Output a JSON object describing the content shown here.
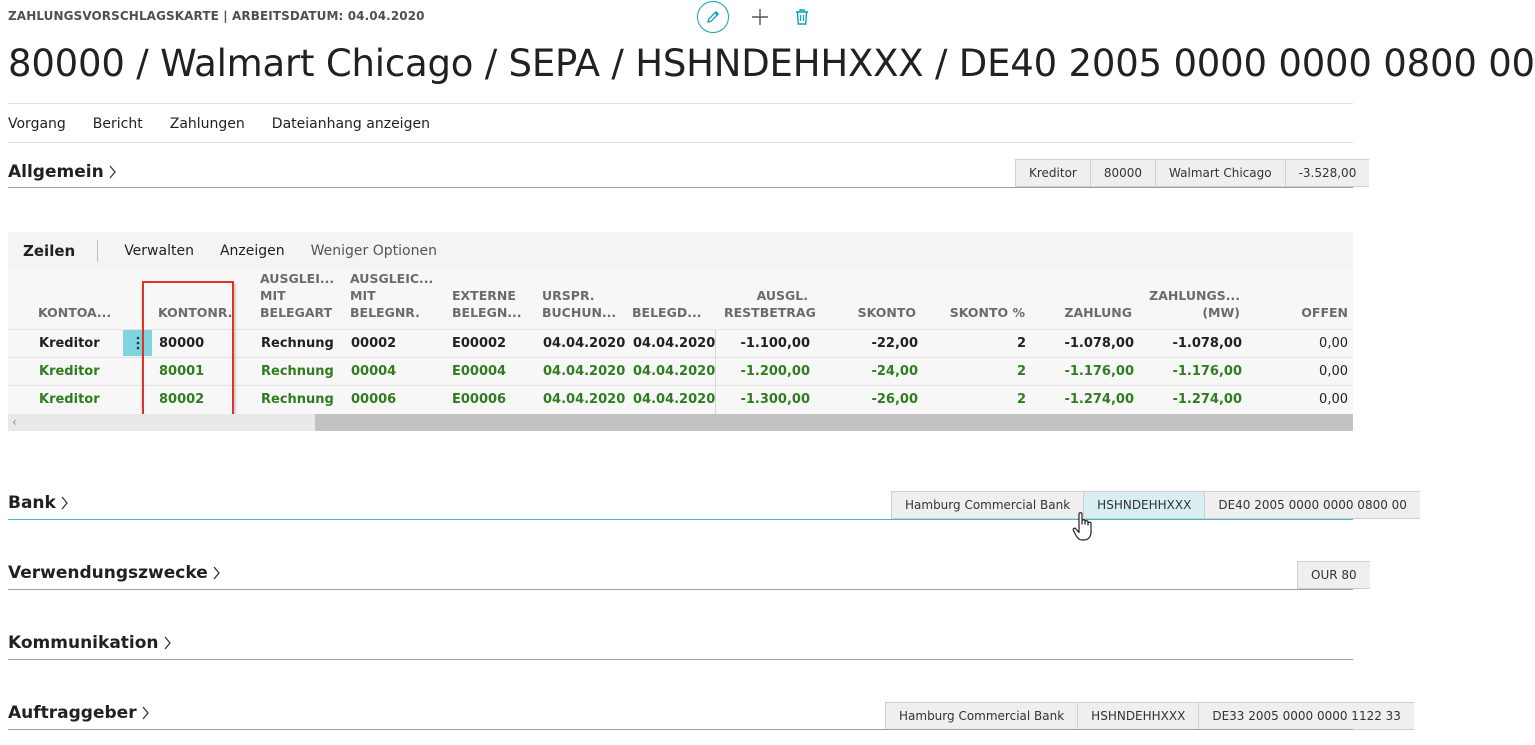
{
  "header": {
    "caption": "ZAHLUNGSVORSCHLAGSKARTE | ARBEITSDATUM: 04.04.2020",
    "title": "80000 / Walmart Chicago / SEPA / HSHNDEHHXXX / DE40 2005 0000 0000 0800 00"
  },
  "toolbar_icons": [
    "pencil-icon",
    "plus-icon",
    "trash-icon"
  ],
  "actions": [
    "Vorgang",
    "Bericht",
    "Zahlungen",
    "Dateianhang anzeigen"
  ],
  "sections": {
    "allgemein": {
      "title": "Allgemein",
      "chips": [
        "Kreditor",
        "80000",
        "Walmart Chicago",
        "-3.528,00"
      ]
    },
    "bank": {
      "title": "Bank",
      "chips": [
        "Hamburg Commercial Bank",
        "HSHNDEHHXXX",
        "DE40 2005 0000 0000 0800 00"
      ]
    },
    "verwendungszwecke": {
      "title": "Verwendungszwecke",
      "chips": [
        "OUR 80"
      ]
    },
    "kommunikation": {
      "title": "Kommunikation"
    },
    "auftraggeber": {
      "title": "Auftraggeber",
      "chips": [
        "Hamburg Commercial Bank",
        "HSHNDEHHXXX",
        "DE33 2005 0000 0000 1122 33"
      ]
    }
  },
  "lines": {
    "title": "Zeilen",
    "actions": [
      "Verwalten",
      "Anzeigen",
      "Weniger Optionen"
    ],
    "columns": [
      [
        "KONTOA..."
      ],
      [
        "KONTONR."
      ],
      [
        "AUSGLEI...",
        "MIT",
        "BELEGART"
      ],
      [
        "AUSGLEIC...",
        "MIT",
        "BELEGNR."
      ],
      [
        "EXTERNE",
        "BELEGN..."
      ],
      [
        "URSPR.",
        "BUCHUN..."
      ],
      [
        "BELEGD..."
      ],
      [
        "AUSGL.",
        "RESTBETRAG"
      ],
      [
        "SKONTO"
      ],
      [
        "SKONTO %"
      ],
      [
        "ZAHLUNG"
      ],
      [
        "ZAHLUNGS...",
        "(MW)"
      ],
      [
        "OFFEN"
      ]
    ],
    "rows": [
      {
        "kontoart": "Kreditor",
        "kontonr": "80000",
        "belegart": "Rechnung",
        "belegnr": "00002",
        "extern": "E00002",
        "buchung": "04.04.2020",
        "belegdatum": "04.04.2020",
        "rest": "-1.100,00",
        "skonto": "-22,00",
        "skonto_pct": "2",
        "zahlung": "-1.078,00",
        "zahlung_mw": "-1.078,00",
        "offen": "0,00"
      },
      {
        "kontoart": "Kreditor",
        "kontonr": "80001",
        "belegart": "Rechnung",
        "belegnr": "00004",
        "extern": "E00004",
        "buchung": "04.04.2020",
        "belegdatum": "04.04.2020",
        "rest": "-1.200,00",
        "skonto": "-24,00",
        "skonto_pct": "2",
        "zahlung": "-1.176,00",
        "zahlung_mw": "-1.176,00",
        "offen": "0,00"
      },
      {
        "kontoart": "Kreditor",
        "kontonr": "80002",
        "belegart": "Rechnung",
        "belegnr": "00006",
        "extern": "E00006",
        "buchung": "04.04.2020",
        "belegdatum": "04.04.2020",
        "rest": "-1.300,00",
        "skonto": "-26,00",
        "skonto_pct": "2",
        "zahlung": "-1.274,00",
        "zahlung_mw": "-1.274,00",
        "offen": "0,00"
      }
    ]
  },
  "colors": {
    "accent": "#0aa4b8",
    "green_text": "#2e7d1f",
    "highlight_box": "#e0302a",
    "row_menu": "#7fd4df"
  }
}
